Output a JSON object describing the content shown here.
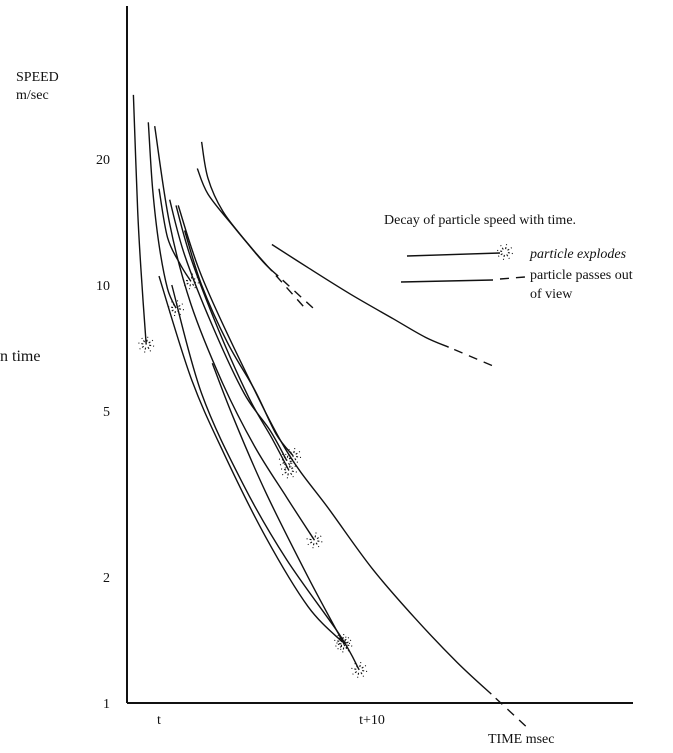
{
  "chart_data": {
    "type": "line",
    "scale": {
      "y": "log"
    },
    "xlabel": "TIME msec",
    "ylabel_line1": "SPEED",
    "ylabel_line2": "m/sec",
    "ylim": [
      1,
      30
    ],
    "xlim": [
      -2,
      24
    ],
    "y_ticks": [
      20,
      10,
      5,
      2,
      1
    ],
    "x_ticks": [
      {
        "value": 0,
        "label": "t"
      },
      {
        "value": 10,
        "label": "t+10"
      }
    ],
    "side_text": "n time",
    "legend": {
      "title": "Decay of particle speed with time.",
      "entries": [
        {
          "label": "particle explodes",
          "style": "solid-burst"
        },
        {
          "label_line1": "particle passes out",
          "label_line2": "of view",
          "style": "solid-dash"
        }
      ]
    },
    "series": [
      {
        "end": "explodes",
        "points": [
          [
            -1.2,
            28.5
          ],
          [
            -1.0,
            15
          ],
          [
            -0.8,
            10
          ],
          [
            -0.6,
            7.2
          ]
        ]
      },
      {
        "end": "explodes",
        "points": [
          [
            -0.5,
            24.5
          ],
          [
            -0.3,
            17
          ],
          [
            0.0,
            12.5
          ],
          [
            0.4,
            9.8
          ],
          [
            0.8,
            8.8
          ]
        ]
      },
      {
        "end": "explodes",
        "points": [
          [
            0.0,
            17
          ],
          [
            0.4,
            13
          ],
          [
            1.0,
            11.2
          ],
          [
            1.5,
            10.2
          ]
        ]
      },
      {
        "end": "passes",
        "points": [
          [
            2.0,
            22
          ],
          [
            2.3,
            18
          ],
          [
            3.0,
            15
          ],
          [
            4.2,
            12.5
          ],
          [
            5.0,
            11.2
          ],
          [
            5.6,
            10.5
          ]
        ]
      },
      {
        "end": "passes",
        "points": [
          [
            1.8,
            19
          ],
          [
            2.3,
            16.5
          ],
          [
            3.5,
            13.8
          ],
          [
            4.5,
            12
          ],
          [
            5.3,
            10.8
          ]
        ]
      },
      {
        "end": "explodes",
        "points": [
          [
            -0.2,
            24
          ],
          [
            0.5,
            14
          ],
          [
            1.5,
            9.0
          ],
          [
            3.0,
            5.8
          ],
          [
            4.5,
            4.1
          ],
          [
            6.0,
            3.1
          ],
          [
            7.3,
            2.45
          ]
        ]
      },
      {
        "end": "explodes",
        "points": [
          [
            0.5,
            16
          ],
          [
            1.2,
            11.8
          ],
          [
            2.5,
            8.0
          ],
          [
            4.0,
            5.5
          ],
          [
            5.2,
            4.5
          ],
          [
            6.0,
            3.8
          ]
        ]
      },
      {
        "end": "explodes",
        "points": [
          [
            0.8,
            15.5
          ],
          [
            1.5,
            11.6
          ],
          [
            2.8,
            7.8
          ],
          [
            4.2,
            5.4
          ],
          [
            5.3,
            4.3
          ],
          [
            6.1,
            3.6
          ]
        ]
      },
      {
        "end": "explodes",
        "points": [
          [
            1.2,
            13.5
          ],
          [
            2.0,
            10.0
          ],
          [
            3.2,
            7.3
          ],
          [
            4.5,
            5.6
          ],
          [
            5.5,
            4.4
          ],
          [
            6.3,
            3.9
          ]
        ]
      },
      {
        "end": "passes",
        "points": [
          [
            0.9,
            15.5
          ],
          [
            2.0,
            10.5
          ],
          [
            4.0,
            6.3
          ],
          [
            6.0,
            4.0
          ],
          [
            8.0,
            2.9
          ],
          [
            10.0,
            2.1
          ],
          [
            12.0,
            1.6
          ],
          [
            14.0,
            1.25
          ],
          [
            15.6,
            1.05
          ]
        ]
      },
      {
        "end": "passes",
        "points": [
          [
            5.3,
            12.5
          ],
          [
            7.0,
            11.0
          ],
          [
            9.0,
            9.5
          ],
          [
            11.0,
            8.3
          ],
          [
            12.5,
            7.5
          ],
          [
            13.6,
            7.1
          ]
        ]
      },
      {
        "end": "explodes",
        "points": [
          [
            0.0,
            10.5
          ],
          [
            1.5,
            6.0
          ],
          [
            3.0,
            4.0
          ],
          [
            5.0,
            2.5
          ],
          [
            7.0,
            1.7
          ],
          [
            8.6,
            1.4
          ]
        ]
      },
      {
        "end": "explodes",
        "points": [
          [
            2.5,
            6.5
          ],
          [
            3.5,
            4.8
          ],
          [
            5.0,
            3.2
          ],
          [
            7.0,
            2.0
          ],
          [
            8.7,
            1.38
          ]
        ]
      },
      {
        "end": "explodes",
        "points": [
          [
            0.6,
            10.0
          ],
          [
            2.0,
            5.5
          ],
          [
            4.0,
            3.3
          ],
          [
            6.0,
            2.2
          ],
          [
            8.5,
            1.45
          ],
          [
            9.4,
            1.2
          ]
        ]
      }
    ]
  }
}
